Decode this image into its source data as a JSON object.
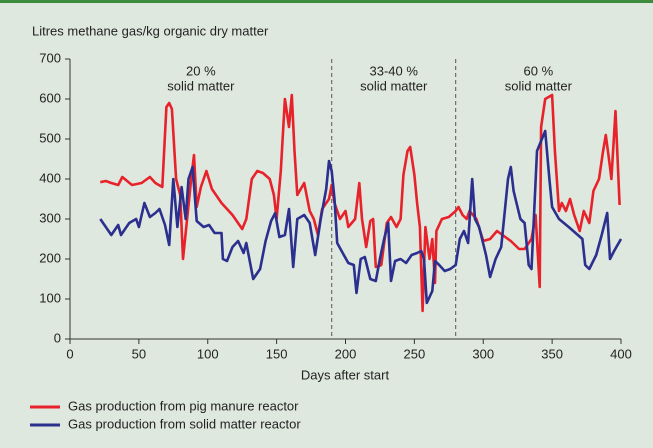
{
  "chart_data": {
    "type": "line",
    "y_label": "Litres methane gas/kg organic dry matter",
    "x_label": "Days after start",
    "xlim": [
      0,
      400
    ],
    "xticks": [
      0,
      50,
      100,
      150,
      200,
      250,
      300,
      350,
      400
    ],
    "ylim": [
      0,
      700
    ],
    "yticks": [
      0,
      100,
      200,
      300,
      400,
      500,
      600,
      700
    ],
    "grid": false,
    "vlines": [
      190,
      280
    ],
    "annotations": [
      {
        "lines": [
          "20 %",
          "solid matter"
        ]
      },
      {
        "lines": [
          "33-40 %",
          "solid matter"
        ]
      },
      {
        "lines": [
          "60 %",
          "solid matter"
        ]
      }
    ],
    "legend": "bottom-left",
    "series": [
      {
        "name": "Gas production from pig manure reactor",
        "color": "#e8222b",
        "x": [
          22,
          26,
          30,
          35,
          38,
          45,
          52,
          58,
          62,
          67,
          70,
          72,
          74,
          77,
          80,
          82,
          85,
          88,
          90,
          92,
          95,
          99,
          103,
          110,
          118,
          125,
          128,
          132,
          136,
          140,
          145,
          148,
          150,
          153,
          156,
          159,
          161,
          163,
          165,
          170,
          174,
          177,
          180,
          183,
          188,
          190,
          192,
          196,
          200,
          202,
          207,
          210,
          212,
          215,
          218,
          220,
          222,
          226,
          230,
          233,
          237,
          240,
          242,
          245,
          247,
          250,
          252,
          254,
          256,
          258,
          261,
          263,
          265,
          266,
          270,
          275,
          280,
          282,
          285,
          288,
          290,
          295,
          300,
          305,
          310,
          320,
          326,
          330,
          335,
          338,
          341,
          342,
          345,
          350,
          352,
          355,
          357,
          360,
          363,
          366,
          370,
          373,
          377,
          380,
          384,
          387,
          389,
          392,
          393,
          396,
          399
        ],
        "values": [
          392,
          395,
          390,
          385,
          405,
          385,
          390,
          405,
          390,
          380,
          580,
          590,
          575,
          400,
          360,
          200,
          300,
          400,
          460,
          330,
          380,
          420,
          375,
          340,
          310,
          275,
          300,
          400,
          420,
          415,
          400,
          360,
          300,
          420,
          600,
          530,
          610,
          470,
          360,
          390,
          320,
          300,
          260,
          325,
          350,
          385,
          340,
          300,
          320,
          280,
          300,
          390,
          300,
          230,
          295,
          300,
          180,
          185,
          290,
          305,
          280,
          300,
          410,
          470,
          480,
          410,
          340,
          280,
          70,
          280,
          200,
          250,
          140,
          270,
          300,
          305,
          320,
          330,
          310,
          300,
          320,
          300,
          245,
          250,
          270,
          245,
          225,
          225,
          250,
          310,
          130,
          530,
          600,
          610,
          470,
          320,
          340,
          320,
          350,
          310,
          270,
          320,
          290,
          370,
          400,
          470,
          510,
          430,
          400,
          570,
          335
        ]
      },
      {
        "name": "Gas production from solid matter reactor",
        "color": "#2b2f8e",
        "x": [
          22,
          30,
          35,
          37,
          43,
          48,
          50,
          54,
          58,
          62,
          65,
          69,
          72,
          75,
          78,
          81,
          84,
          86,
          89,
          92,
          97,
          101,
          105,
          110,
          111,
          114,
          118,
          122,
          126,
          128,
          133,
          138,
          142,
          146,
          149,
          152,
          156,
          159,
          162,
          165,
          170,
          174,
          178,
          182,
          186,
          188,
          190,
          192,
          194,
          198,
          202,
          206,
          208,
          211,
          214,
          218,
          222,
          225,
          228,
          231,
          233,
          236,
          240,
          244,
          248,
          252,
          255,
          257,
          259,
          263,
          265,
          268,
          272,
          276,
          280,
          283,
          286,
          289,
          292,
          294,
          297,
          302,
          305,
          309,
          313,
          318,
          320,
          322,
          327,
          330,
          333,
          335,
          339,
          342,
          345,
          348,
          350,
          355,
          362,
          372,
          374,
          377,
          382,
          386,
          390,
          392,
          395,
          400
        ],
        "values": [
          300,
          260,
          285,
          260,
          290,
          300,
          280,
          340,
          305,
          315,
          325,
          285,
          235,
          400,
          280,
          380,
          300,
          400,
          430,
          295,
          280,
          285,
          265,
          265,
          200,
          195,
          230,
          245,
          215,
          240,
          150,
          175,
          245,
          295,
          315,
          255,
          260,
          325,
          180,
          300,
          310,
          290,
          210,
          300,
          375,
          445,
          420,
          350,
          240,
          215,
          190,
          185,
          115,
          200,
          205,
          150,
          145,
          200,
          250,
          290,
          145,
          195,
          200,
          190,
          210,
          215,
          220,
          200,
          90,
          120,
          195,
          185,
          170,
          175,
          185,
          250,
          270,
          240,
          400,
          300,
          280,
          210,
          155,
          200,
          230,
          400,
          430,
          370,
          300,
          290,
          185,
          175,
          470,
          495,
          520,
          400,
          330,
          300,
          280,
          250,
          185,
          175,
          210,
          260,
          315,
          200,
          220,
          250
        ]
      }
    ]
  }
}
